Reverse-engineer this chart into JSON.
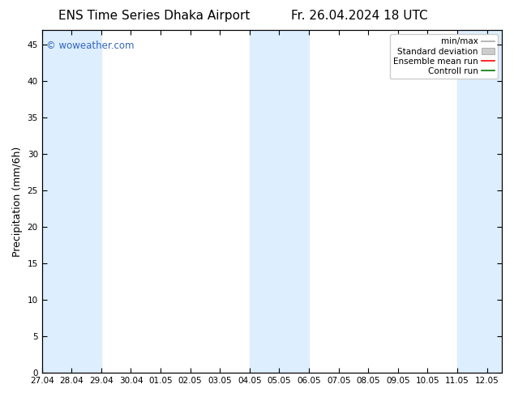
{
  "title_left": "ENS Time Series Dhaka Airport",
  "title_right": "Fr. 26.04.2024 18 UTC",
  "ylabel": "Precipitation (mm/6h)",
  "watermark": "© woweather.com",
  "watermark_color": "#3366bb",
  "xlim_start": 0,
  "xlim_end": 15.5,
  "ylim": [
    0,
    47
  ],
  "yticks": [
    0,
    5,
    10,
    15,
    20,
    25,
    30,
    35,
    40,
    45
  ],
  "xtick_labels": [
    "27.04",
    "28.04",
    "29.04",
    "30.04",
    "01.05",
    "02.05",
    "03.05",
    "04.05",
    "05.05",
    "06.05",
    "07.05",
    "08.05",
    "09.05",
    "10.05",
    "11.05",
    "12.05"
  ],
  "background_color": "#ffffff",
  "shade_color": "#ddeeff",
  "shade_bands": [
    [
      0,
      1
    ],
    [
      1,
      2
    ],
    [
      7,
      8
    ],
    [
      8,
      9
    ],
    [
      14,
      15.5
    ]
  ],
  "legend_items": [
    {
      "label": "min/max",
      "color": "#aaaaaa",
      "type": "minmax"
    },
    {
      "label": "Standard deviation",
      "color": "#cccccc",
      "type": "fill"
    },
    {
      "label": "Ensemble mean run",
      "color": "#ff0000",
      "type": "line"
    },
    {
      "label": "Controll run",
      "color": "#007700",
      "type": "line"
    }
  ],
  "title_fontsize": 11,
  "tick_fontsize": 7.5,
  "ylabel_fontsize": 9,
  "legend_fontsize": 7.5
}
